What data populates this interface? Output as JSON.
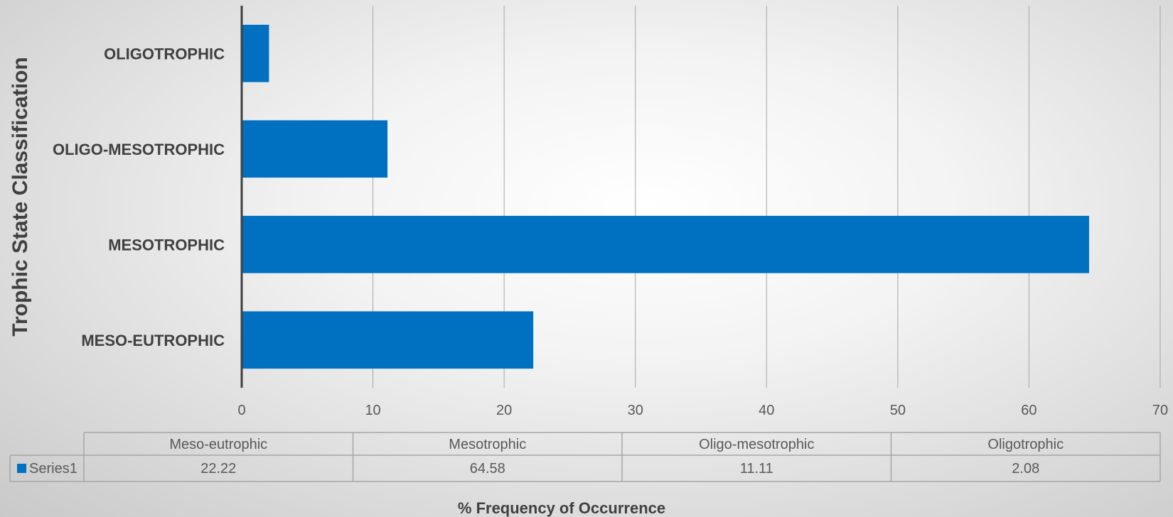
{
  "chart_data": {
    "type": "bar",
    "orientation": "horizontal",
    "categories": [
      "MESO-EUTROPHIC",
      "MESOTROPHIC",
      "OLIGO-MESOTROPHIC",
      "OLIGOTROPHIC"
    ],
    "series": [
      {
        "name": "Series1",
        "values": [
          22.22,
          64.58,
          11.11,
          2.08
        ],
        "color": "#0070C0"
      }
    ],
    "xlabel": "% Frequency of Occurrence",
    "ylabel": "Trophic State Classification",
    "xlim": [
      0,
      70
    ],
    "x_ticks": [
      "0",
      "10",
      "20",
      "30",
      "40",
      "50",
      "60",
      "70"
    ],
    "grid": "vertical",
    "data_table": {
      "headers": [
        "Meso-eutrophic",
        "Mesotrophic",
        "Oligo-mesotrophic",
        "Oligotrophic"
      ],
      "row_label": "Series1",
      "values": [
        "22.22",
        "64.58",
        "11.11",
        "2.08"
      ]
    }
  },
  "colors": {
    "bar": "#0070C0",
    "axis": "#404040",
    "grid": "#a6a6a6",
    "table_border": "#a6a6a6"
  }
}
